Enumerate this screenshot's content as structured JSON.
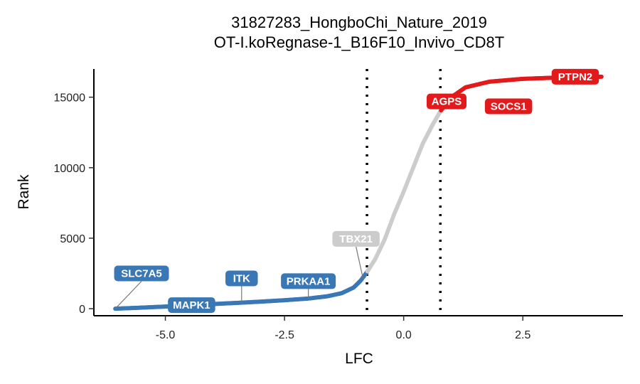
{
  "chart_data": {
    "type": "scatter",
    "title": "31827283_HongboChi_Nature_2019",
    "subtitle": "OT-I.koRegnase-1_B16F10_Invivo_CD8T",
    "xlabel": "LFC",
    "ylabel": "Rank",
    "xlim": [
      -6.5,
      4.6
    ],
    "ylim": [
      -500,
      17000
    ],
    "xticks": [
      -5.0,
      -2.5,
      0.0,
      2.5
    ],
    "xtick_labels": [
      "-5.0",
      "-2.5",
      "0.0",
      "2.5"
    ],
    "yticks": [
      0,
      5000,
      10000,
      15000
    ],
    "ytick_labels": [
      "0",
      "5000",
      "10000",
      "15000"
    ],
    "thresholds": [
      -0.77,
      0.77
    ],
    "grid": false,
    "colors": {
      "down": "#3a78b5",
      "neutral": "#cccccc",
      "up": "#e31a1c"
    },
    "curve_points": [
      [
        -6.05,
        0
      ],
      [
        -5.6,
        60
      ],
      [
        -5.0,
        150
      ],
      [
        -4.5,
        240
      ],
      [
        -4.0,
        330
      ],
      [
        -3.5,
        410
      ],
      [
        -3.0,
        500
      ],
      [
        -2.5,
        600
      ],
      [
        -2.0,
        720
      ],
      [
        -1.6,
        880
      ],
      [
        -1.3,
        1100
      ],
      [
        -1.05,
        1500
      ],
      [
        -0.9,
        2000
      ],
      [
        -0.77,
        2600
      ],
      [
        -0.6,
        3500
      ],
      [
        -0.4,
        4900
      ],
      [
        -0.2,
        6700
      ],
      [
        0.0,
        8300
      ],
      [
        0.2,
        10000
      ],
      [
        0.4,
        11700
      ],
      [
        0.6,
        13000
      ],
      [
        0.77,
        14000
      ],
      [
        1.0,
        15000
      ],
      [
        1.3,
        15700
      ],
      [
        1.8,
        16100
      ],
      [
        2.5,
        16300
      ],
      [
        3.3,
        16400
      ],
      [
        4.15,
        16450
      ]
    ],
    "labels": [
      {
        "gene": "SLC7A5",
        "x": -6.05,
        "y": 0,
        "label_x": -5.5,
        "label_y": 2500,
        "group": "down"
      },
      {
        "gene": "MAPK1",
        "x": -4.45,
        "y": 240,
        "label_x": -4.45,
        "label_y": 250,
        "group": "down"
      },
      {
        "gene": "ITK",
        "x": -3.4,
        "y": 420,
        "label_x": -3.4,
        "label_y": 2150,
        "group": "down"
      },
      {
        "gene": "PRKAA1",
        "x": -2.0,
        "y": 720,
        "label_x": -2.0,
        "label_y": 1950,
        "group": "down"
      },
      {
        "gene": "TBX21",
        "x": -0.85,
        "y": 2100,
        "label_x": -1.0,
        "label_y": 4950,
        "group": "neutral"
      },
      {
        "gene": "AGPS",
        "x": 0.9,
        "y": 14600,
        "label_x": 0.9,
        "label_y": 14700,
        "group": "up"
      },
      {
        "gene": "SOCS1",
        "x": 2.2,
        "y": 14200,
        "label_x": 2.2,
        "label_y": 14350,
        "group": "up"
      },
      {
        "gene": "PTPN2",
        "x": 3.6,
        "y": 16400,
        "label_x": 3.6,
        "label_y": 16450,
        "group": "up"
      }
    ]
  }
}
